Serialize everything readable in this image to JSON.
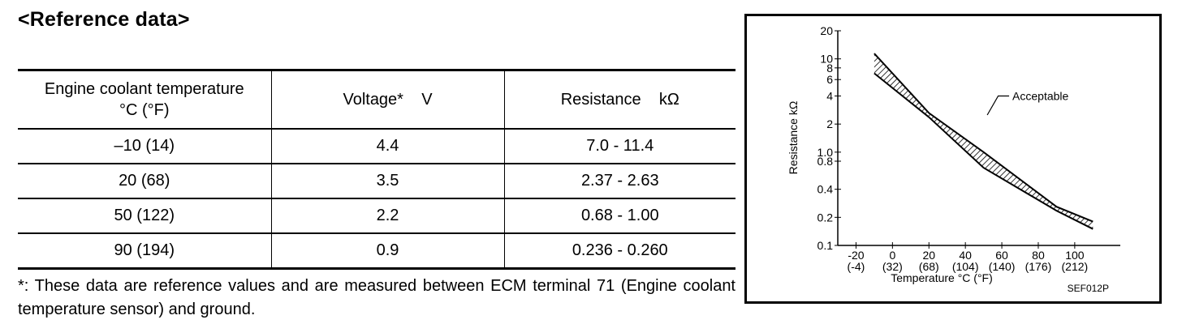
{
  "heading": "<Reference data>",
  "table": {
    "headers": {
      "temp_line1": "Engine coolant temperature",
      "temp_line2": "°C (°F)",
      "voltage": "Voltage*    V",
      "resistance": "Resistance    kΩ"
    },
    "rows": [
      {
        "temp": "–10 (14)",
        "voltage": "4.4",
        "resistance": "7.0 - 11.4"
      },
      {
        "temp": "20 (68)",
        "voltage": "3.5",
        "resistance": "2.37 - 2.63"
      },
      {
        "temp": "50 (122)",
        "voltage": "2.2",
        "resistance": "0.68 - 1.00"
      },
      {
        "temp": "90 (194)",
        "voltage": "0.9",
        "resistance": "0.236 - 0.260"
      }
    ]
  },
  "footnote": "*: These data are reference values and are measured between ECM terminal 71 (Engine coolant temperature sensor) and ground.",
  "figure": {
    "annotation": "Acceptable",
    "code": "SEF012P"
  },
  "chart_data": {
    "type": "area",
    "title": "",
    "xlabel": "Temperature °C (°F)",
    "ylabel": "Resistance  kΩ",
    "y_scale": "log",
    "xlim": [
      -30,
      125
    ],
    "ylim": [
      0.1,
      20
    ],
    "x_ticks": [
      {
        "value": -20,
        "c": "-20",
        "f": "(-4)"
      },
      {
        "value": 0,
        "c": "0",
        "f": "(32)"
      },
      {
        "value": 20,
        "c": "20",
        "f": "(68)"
      },
      {
        "value": 40,
        "c": "40",
        "f": "(104)"
      },
      {
        "value": 60,
        "c": "60",
        "f": "(140)"
      },
      {
        "value": 80,
        "c": "80",
        "f": "(176)"
      },
      {
        "value": 100,
        "c": "100",
        "f": "(212)"
      }
    ],
    "y_ticks": [
      {
        "value": 20,
        "label": "20"
      },
      {
        "value": 10,
        "label": "10"
      },
      {
        "value": 8,
        "label": "8"
      },
      {
        "value": 6,
        "label": "6"
      },
      {
        "value": 4,
        "label": "4"
      },
      {
        "value": 2,
        "label": "2"
      },
      {
        "value": 1.0,
        "label": "1.0"
      },
      {
        "value": 0.8,
        "label": "0.8"
      },
      {
        "value": 0.4,
        "label": "0.4"
      },
      {
        "value": 0.2,
        "label": "0.2"
      },
      {
        "value": 0.1,
        "label": "0.1"
      }
    ],
    "series": [
      {
        "values_upper": [
          [
            -10,
            11.4
          ],
          [
            20,
            2.63
          ],
          [
            50,
            1.0
          ],
          [
            90,
            0.26
          ],
          [
            110,
            0.18
          ]
        ],
        "values_lower": [
          [
            -10,
            7.0
          ],
          [
            20,
            2.37
          ],
          [
            50,
            0.68
          ],
          [
            90,
            0.236
          ],
          [
            110,
            0.15
          ]
        ]
      }
    ],
    "grid": false,
    "legend": "none"
  }
}
